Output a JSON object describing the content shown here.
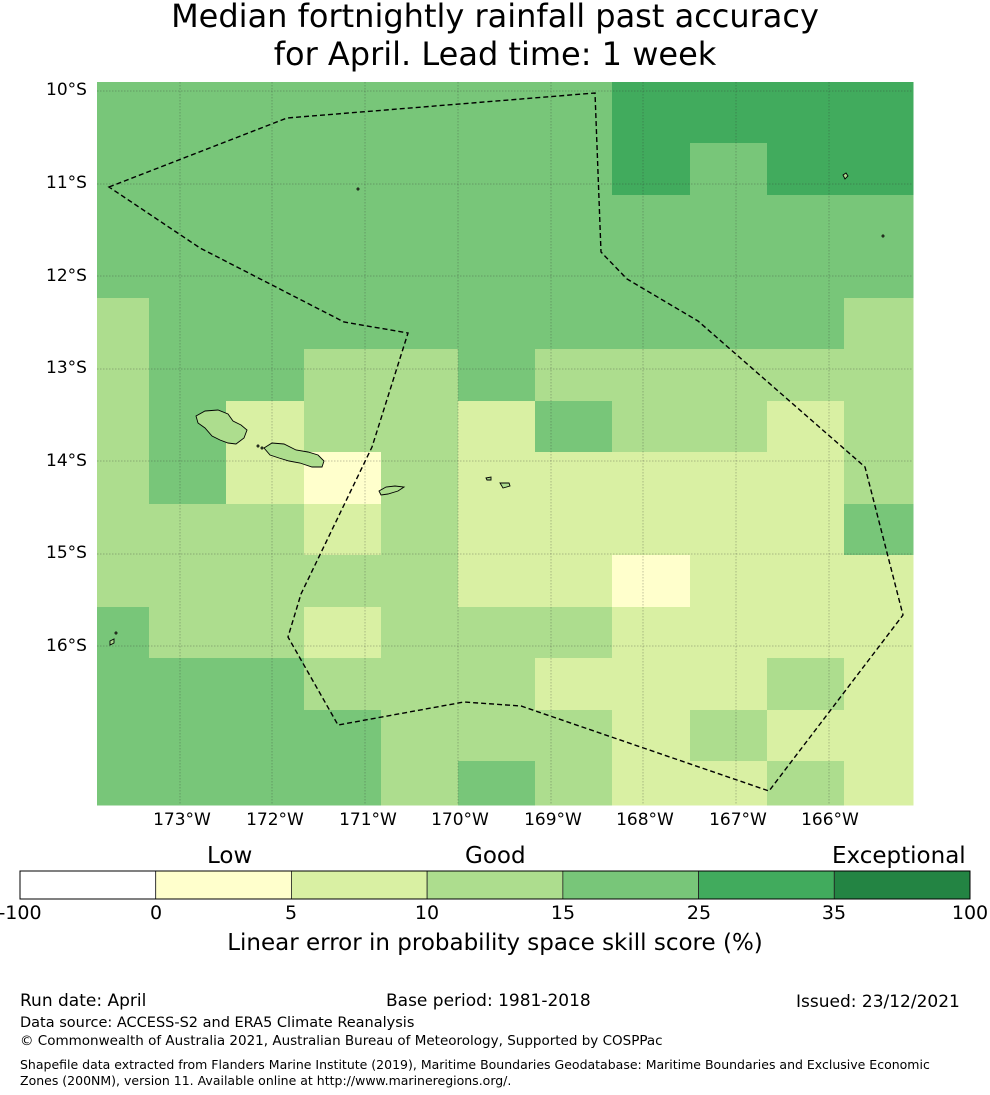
{
  "title_line1": "Median fortnightly rainfall past accuracy",
  "title_line2": "for April. Lead time: 1 week",
  "lat_labels": [
    "10°S",
    "11°S",
    "12°S",
    "13°S",
    "14°S",
    "15°S",
    "16°S"
  ],
  "lon_labels": [
    "173°W",
    "172°W",
    "171°W",
    "170°W",
    "169°W",
    "168°W",
    "167°W",
    "166°W"
  ],
  "colorbar": {
    "categories": [
      "Low",
      "Good",
      "Exceptional"
    ],
    "ticks": [
      "-100",
      "0",
      "5",
      "10",
      "15",
      "25",
      "35",
      "100"
    ],
    "colors": [
      "#ffffff",
      "#ffffcc",
      "#d9f0a3",
      "#addd8e",
      "#78c679",
      "#41ab5d",
      "#238443"
    ],
    "label": "Linear error in probability space skill score (%)"
  },
  "grid_cells": [
    [
      4,
      4,
      4,
      4,
      4,
      4,
      4,
      5,
      5,
      5,
      5
    ],
    [
      4,
      4,
      4,
      4,
      4,
      4,
      4,
      5,
      4,
      5,
      5
    ],
    [
      4,
      4,
      4,
      4,
      4,
      4,
      4,
      4,
      4,
      4,
      4
    ],
    [
      4,
      4,
      4,
      4,
      4,
      4,
      4,
      4,
      4,
      4,
      4
    ],
    [
      3,
      4,
      4,
      4,
      4,
      4,
      4,
      4,
      4,
      4,
      3
    ],
    [
      3,
      4,
      4,
      3,
      3,
      4,
      3,
      3,
      3,
      3,
      3
    ],
    [
      3,
      4,
      2,
      3,
      3,
      2,
      4,
      3,
      3,
      2,
      3
    ],
    [
      3,
      4,
      2,
      1,
      3,
      2,
      2,
      2,
      2,
      2,
      3
    ],
    [
      3,
      3,
      3,
      2,
      3,
      2,
      2,
      2,
      2,
      2,
      4
    ],
    [
      3,
      3,
      3,
      3,
      3,
      2,
      2,
      1,
      2,
      2,
      2
    ],
    [
      4,
      3,
      3,
      2,
      3,
      3,
      3,
      2,
      2,
      2,
      2
    ],
    [
      4,
      4,
      4,
      3,
      3,
      3,
      2,
      2,
      2,
      3,
      2
    ],
    [
      4,
      4,
      4,
      4,
      3,
      3,
      3,
      2,
      3,
      2,
      2
    ],
    [
      4,
      4,
      4,
      4,
      3,
      4,
      3,
      2,
      2,
      3,
      2
    ]
  ],
  "footer": {
    "run_date": "Run date: April",
    "base_period": "Base period: 1981-2018",
    "issued": "Issued: 23/12/2021",
    "data_source": "Data source: ACCESS-S2 and ERA5 Climate Reanalysis",
    "copyright": "© Commonwealth of Australia 2021, Australian Bureau of Meteorology, Supported by COSPPac",
    "shapefile": "Shapefile data extracted from Flanders Marine Institute (2019), Maritime Boundaries Geodatabase: Maritime Boundaries and Exclusive Economic Zones (200NM), version 11. Available online at http://www.marineregions.org/."
  }
}
